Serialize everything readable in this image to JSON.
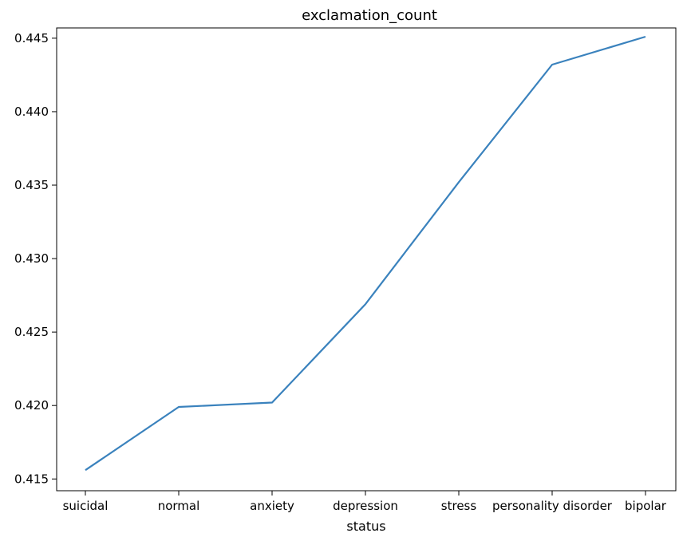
{
  "chart_data": {
    "type": "line",
    "title": "exclamation_count",
    "xlabel": "status",
    "ylabel": "",
    "categories": [
      "suicidal",
      "normal",
      "anxiety",
      "depression",
      "stress",
      "personality disorder",
      "bipolar"
    ],
    "series": [
      {
        "values": [
          0.4156,
          0.4199,
          0.4202,
          0.4269,
          0.4352,
          0.4432,
          0.4451
        ],
        "color": "#3a82bd"
      }
    ],
    "ylim": [
      0.4142,
      0.4457
    ],
    "yticks": [
      0.415,
      0.42,
      0.425,
      0.43,
      0.435,
      0.44,
      0.445
    ],
    "ytick_labels": [
      "0.415",
      "0.420",
      "0.425",
      "0.430",
      "0.435",
      "0.440",
      "0.445"
    ],
    "grid": false,
    "legend": "none"
  }
}
